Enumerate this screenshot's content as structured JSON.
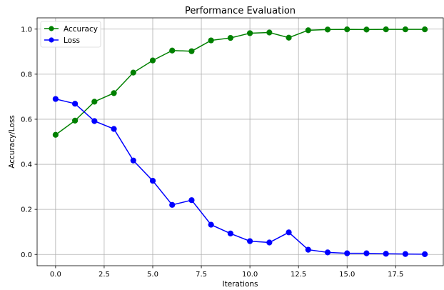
{
  "chart_data": {
    "type": "line",
    "title": "Performance Evaluation",
    "xlabel": "Iterations",
    "ylabel": "Accuracy/Loss",
    "x": [
      0,
      1,
      2,
      3,
      4,
      5,
      6,
      7,
      8,
      9,
      10,
      11,
      12,
      13,
      14,
      15,
      16,
      17,
      18,
      19
    ],
    "xlim": [
      -0.95,
      19.95
    ],
    "ylim": [
      -0.05,
      1.05
    ],
    "xticks": [
      0.0,
      2.5,
      5.0,
      7.5,
      10.0,
      12.5,
      15.0,
      17.5
    ],
    "xtick_labels": [
      "0.0",
      "2.5",
      "5.0",
      "7.5",
      "10.0",
      "12.5",
      "15.0",
      "17.5"
    ],
    "yticks": [
      0.0,
      0.2,
      0.4,
      0.6,
      0.8,
      1.0
    ],
    "ytick_labels": [
      "0.0",
      "0.2",
      "0.4",
      "0.6",
      "0.8",
      "1.0"
    ],
    "grid": true,
    "legend_position": "top-left",
    "series": [
      {
        "name": "Accuracy",
        "color": "#008000",
        "marker": "circle",
        "values": [
          0.531,
          0.594,
          0.678,
          0.716,
          0.807,
          0.861,
          0.905,
          0.902,
          0.95,
          0.961,
          0.982,
          0.985,
          0.962,
          0.995,
          0.998,
          0.999,
          0.998,
          0.999,
          0.999,
          0.999
        ]
      },
      {
        "name": "Loss",
        "color": "#0000ff",
        "marker": "circle",
        "values": [
          0.69,
          0.669,
          0.592,
          0.557,
          0.417,
          0.327,
          0.22,
          0.241,
          0.132,
          0.093,
          0.059,
          0.053,
          0.098,
          0.021,
          0.009,
          0.005,
          0.005,
          0.003,
          0.002,
          0.001
        ]
      }
    ]
  }
}
